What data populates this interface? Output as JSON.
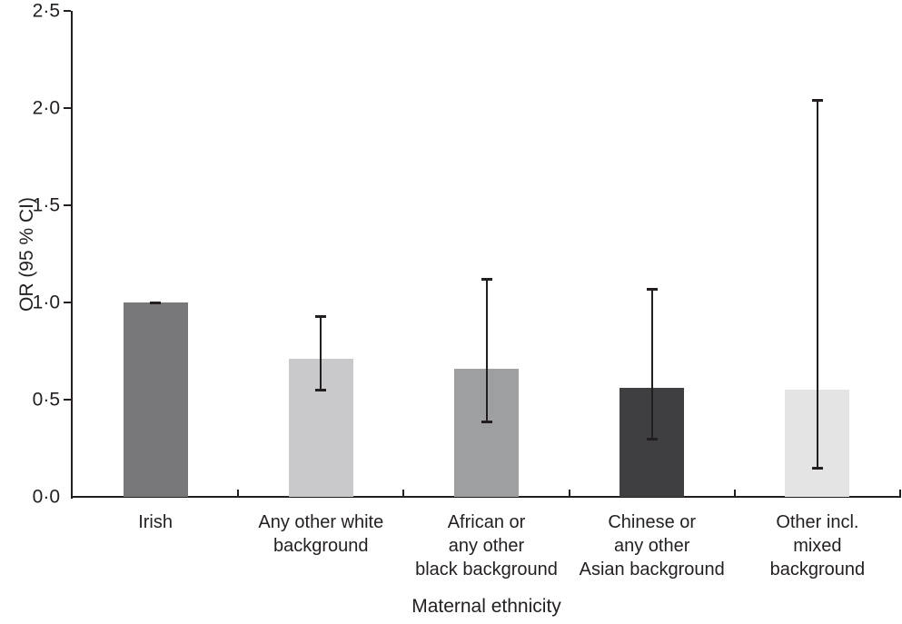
{
  "figure": {
    "background": "#ffffff"
  },
  "chart_data": {
    "type": "bar",
    "title": "",
    "xlabel": "Maternal ethnicity",
    "ylabel": "OR (95 % CI)",
    "ylim": [
      0,
      2.5
    ],
    "grid": false,
    "legend_position": "none",
    "axis_color": "#231f20",
    "yticks": {
      "values": [
        0,
        0.5,
        1.0,
        1.5,
        2.0,
        2.5
      ],
      "labels": [
        "0·0",
        "0·5",
        "1·0",
        "1·5",
        "2·0",
        "2·5"
      ]
    },
    "categories": [
      "Irish",
      "Any other white background",
      "African or any other black background",
      "Chinese or any other Asian background",
      "Other incl. mixed background"
    ],
    "category_label_lines": [
      [
        "Irish"
      ],
      [
        "Any other white",
        "background"
      ],
      [
        "African or",
        "any other",
        "black background"
      ],
      [
        "Chinese or",
        "any other",
        "Asian background"
      ],
      [
        "Other incl.",
        "mixed",
        "background"
      ]
    ],
    "series": [
      {
        "name": "OR",
        "values": [
          1.0,
          0.71,
          0.66,
          0.56,
          0.55
        ],
        "ci_low": [
          1.0,
          0.55,
          0.39,
          0.3,
          0.15
        ],
        "ci_high": [
          1.0,
          0.93,
          1.12,
          1.07,
          2.04
        ]
      }
    ],
    "bar_colors": [
      "#78787a",
      "#c9c9cb",
      "#9d9fa1",
      "#3f3f41",
      "#e4e4e5"
    ]
  }
}
